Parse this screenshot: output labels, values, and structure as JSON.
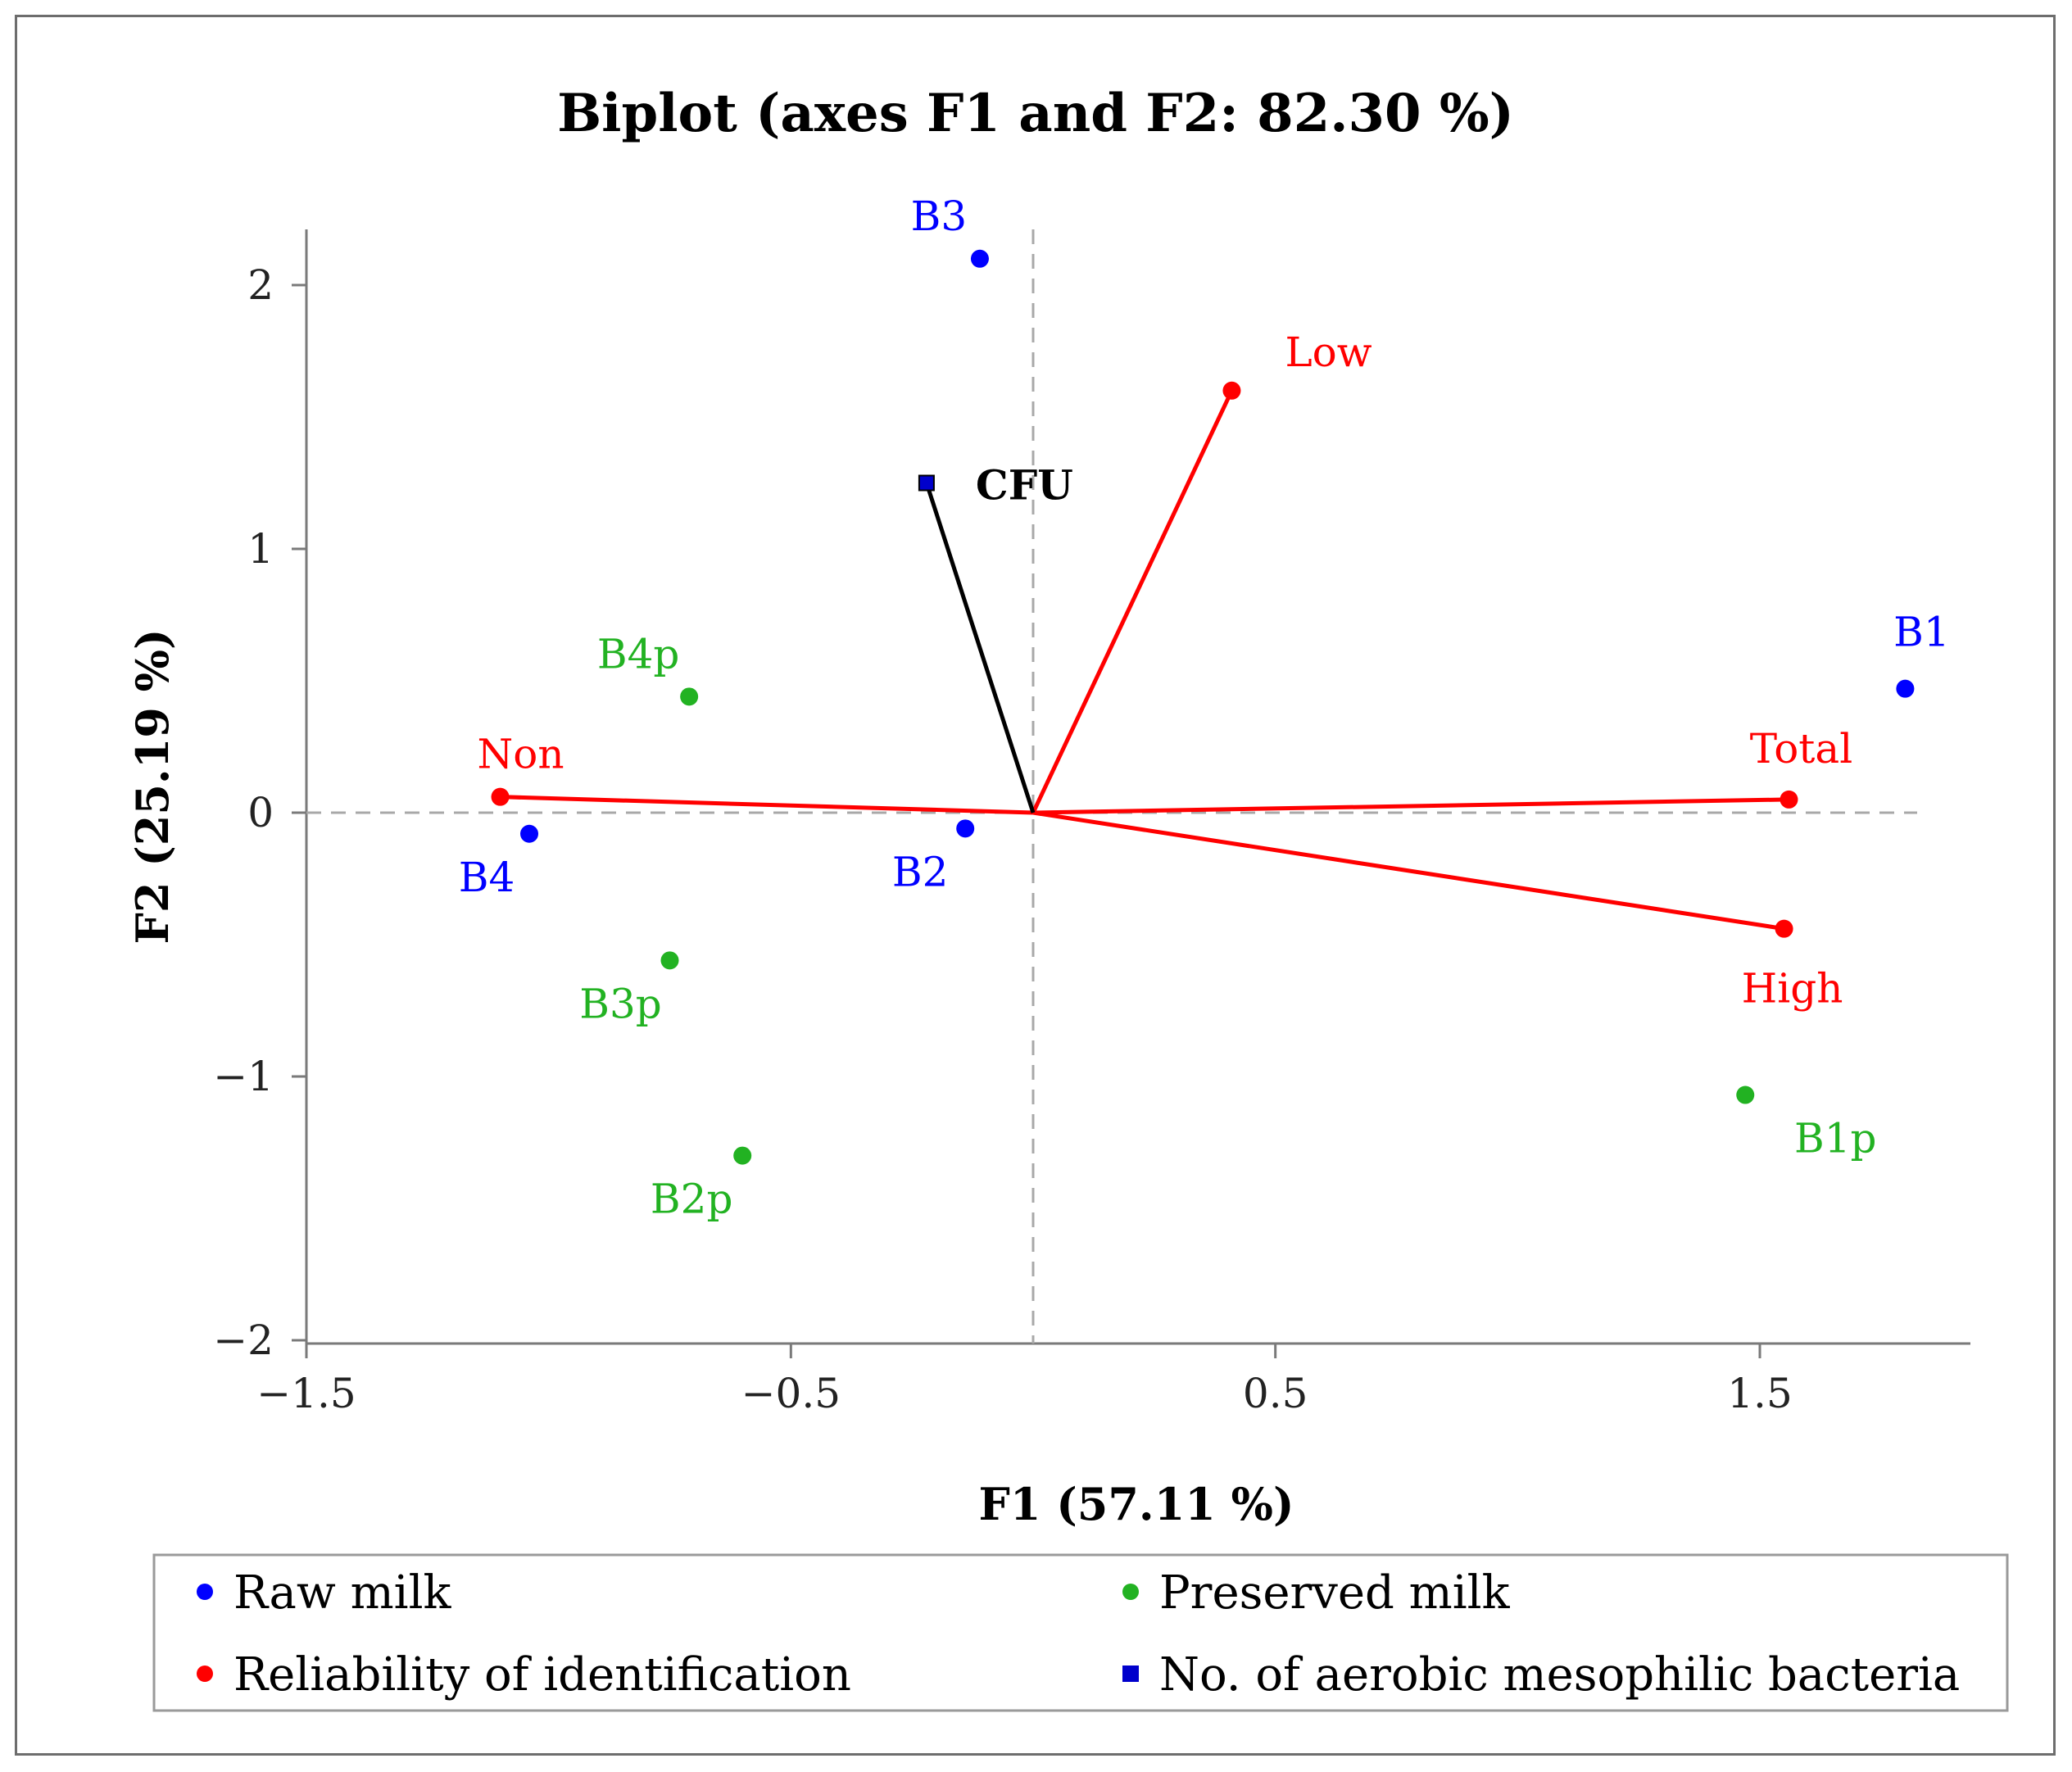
{
  "chart_data": {
    "type": "scatter",
    "title": "Biplot (axes F1 and F2: 82.30 %)",
    "xlabel": "F1 (57.11 %)",
    "ylabel": "F2 (25.19 %)",
    "xlim": [
      -1.5,
      2.0
    ],
    "ylim": [
      -2.0,
      2.2
    ],
    "xticks": [
      -1.5,
      -0.5,
      0.5,
      1.5
    ],
    "xtick_labels": [
      "−1.5",
      "−0.5",
      "0.5",
      "1.5"
    ],
    "yticks": [
      -2,
      -1,
      0,
      1,
      2
    ],
    "ytick_labels": [
      "−2",
      "−1",
      "0",
      "1",
      "2"
    ],
    "grid": false,
    "colors": {
      "raw": "#0000ff",
      "preserved": "#22b222",
      "reliability": "#ff0000",
      "cfu": "#000000",
      "cfu_marker": "#0000cc"
    },
    "series": [
      {
        "name": "Raw milk",
        "color": "#0000ff",
        "marker": "circle",
        "points": [
          {
            "label": "B1",
            "x": 1.8,
            "y": 0.47
          },
          {
            "label": "B2",
            "x": -0.14,
            "y": -0.06
          },
          {
            "label": "B3",
            "x": -0.11,
            "y": 2.1
          },
          {
            "label": "B4",
            "x": -1.04,
            "y": -0.08
          }
        ]
      },
      {
        "name": "Preserved milk",
        "color": "#22b222",
        "marker": "circle",
        "points": [
          {
            "label": "B1p",
            "x": 1.47,
            "y": -1.07
          },
          {
            "label": "B2p",
            "x": -0.6,
            "y": -1.3
          },
          {
            "label": "B3p",
            "x": -0.75,
            "y": -0.56
          },
          {
            "label": "B4p",
            "x": -0.71,
            "y": 0.44
          }
        ]
      },
      {
        "name": "Reliability of identification",
        "color": "#ff0000",
        "marker": "circle",
        "vector": true,
        "points": [
          {
            "label": "Low",
            "x": 0.41,
            "y": 1.6
          },
          {
            "label": "Total",
            "x": 1.56,
            "y": 0.05
          },
          {
            "label": "High",
            "x": 1.55,
            "y": -0.44
          },
          {
            "label": "Non",
            "x": -1.1,
            "y": 0.06
          }
        ]
      },
      {
        "name": "No. of aerobic mesophilic bacteria",
        "color": "#000000",
        "marker": "square",
        "vector": true,
        "points": [
          {
            "label": "CFU",
            "x": -0.22,
            "y": 1.25
          }
        ]
      }
    ],
    "legend": {
      "placement": "bottom",
      "entries": [
        {
          "label": "Raw milk",
          "color": "#0000ff",
          "marker": "circle"
        },
        {
          "label": "Preserved milk",
          "color": "#22b222",
          "marker": "circle"
        },
        {
          "label": "Reliability of identification",
          "color": "#ff0000",
          "marker": "circle"
        },
        {
          "label": "No. of aerobic mesophilic bacteria",
          "color": "#0000cc",
          "marker": "square"
        }
      ]
    }
  }
}
